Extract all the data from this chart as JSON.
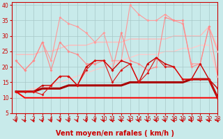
{
  "xlabel": "Vent moyen/en rafales ( km/h )",
  "bg_color": "#c8eaea",
  "grid_color": "#a8c8c8",
  "hours": [
    0,
    1,
    2,
    3,
    4,
    5,
    6,
    7,
    8,
    9,
    10,
    11,
    12,
    13,
    14,
    15,
    16,
    17,
    18,
    19,
    20,
    21,
    22,
    23
  ],
  "ylim": [
    5,
    41
  ],
  "xlim": [
    -0.5,
    23
  ],
  "yticks": [
    5,
    10,
    15,
    20,
    25,
    30,
    35,
    40
  ],
  "series": [
    {
      "y": [
        22,
        19,
        22,
        28,
        22,
        36,
        34,
        33,
        31,
        28,
        31,
        22,
        22,
        40,
        37,
        35,
        35,
        37,
        35,
        34,
        21,
        21,
        33,
        25
      ],
      "color": "#ff9999",
      "lw": 0.8,
      "marker": "D",
      "ms": 2.0,
      "zorder": 3
    },
    {
      "y": [
        22,
        19,
        22,
        28,
        19,
        28,
        25,
        24,
        21,
        21,
        22,
        19,
        31,
        22,
        21,
        19,
        20,
        36,
        35,
        35,
        20,
        21,
        33,
        17
      ],
      "color": "#ff8888",
      "lw": 0.8,
      "marker": "D",
      "ms": 2.0,
      "zorder": 3
    },
    {
      "y": [
        12,
        12,
        12,
        14,
        14,
        17,
        17,
        14,
        20,
        22,
        22,
        19,
        22,
        21,
        15,
        21,
        23,
        21,
        20,
        16,
        16,
        21,
        16,
        13
      ],
      "color": "#cc0000",
      "lw": 1.0,
      "marker": "D",
      "ms": 2.0,
      "zorder": 4
    },
    {
      "y": [
        12,
        12,
        12,
        11,
        14,
        17,
        17,
        14,
        19,
        22,
        22,
        15,
        19,
        21,
        15,
        18,
        23,
        20,
        20,
        16,
        16,
        16,
        16,
        10
      ],
      "color": "#dd1111",
      "lw": 0.8,
      "marker": "D",
      "ms": 2.0,
      "zorder": 4
    },
    {
      "y": [
        12,
        10,
        10,
        10,
        10,
        10,
        10,
        10,
        10,
        10,
        10,
        10,
        10,
        10,
        10,
        10,
        10,
        10,
        10,
        10,
        10,
        10,
        10,
        10
      ],
      "color": "#ff0000",
      "lw": 1.4,
      "marker": null,
      "ms": 0,
      "zorder": 2
    },
    {
      "y": [
        12,
        12,
        12,
        13,
        13,
        13,
        14,
        14,
        14,
        14,
        14,
        14,
        14,
        15,
        15,
        15,
        15,
        15,
        15,
        15,
        16,
        16,
        16,
        10
      ],
      "color": "#aa0000",
      "lw": 2.2,
      "marker": null,
      "ms": 0,
      "zorder": 3
    },
    {
      "y": [
        24,
        24,
        24,
        25,
        25,
        26,
        27,
        27,
        27,
        28,
        28,
        28,
        28,
        29,
        29,
        29,
        29,
        29,
        30,
        30,
        30,
        30,
        33,
        26
      ],
      "color": "#ffbbbb",
      "lw": 1.0,
      "marker": null,
      "ms": 0,
      "zorder": 1
    },
    {
      "y": [
        12,
        12,
        13,
        13,
        14,
        15,
        16,
        17,
        18,
        19,
        20,
        21,
        22,
        23,
        24,
        24,
        24,
        25,
        25,
        26,
        26,
        27,
        27,
        17
      ],
      "color": "#ffcccc",
      "lw": 1.0,
      "marker": null,
      "ms": 0,
      "zorder": 1
    }
  ],
  "arrow_color": "#cc0000",
  "xlabel_color": "#cc0000",
  "xlabel_fontsize": 7,
  "tick_fontsize": 5.5,
  "tick_color": "#cc0000",
  "axis_color": "#cc0000",
  "ylabel_values": [
    5,
    10,
    15,
    20,
    25,
    30,
    35,
    40
  ],
  "ylabel_fontsize": 5.5
}
